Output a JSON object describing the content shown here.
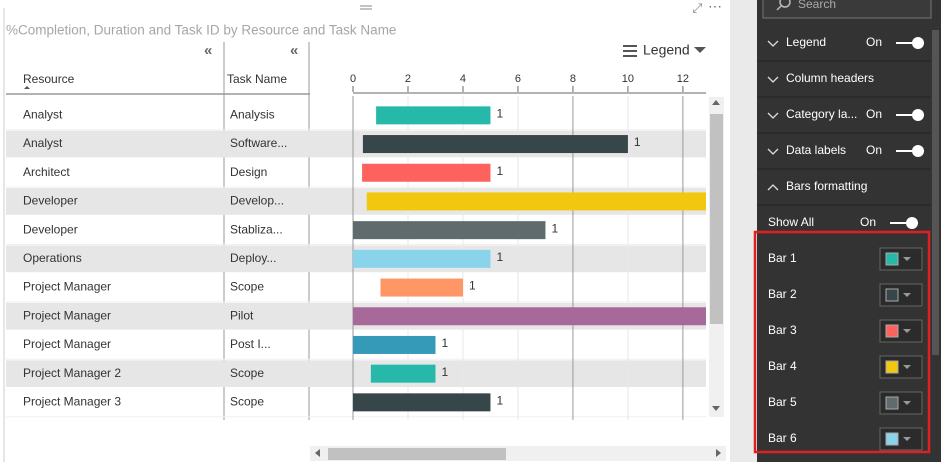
{
  "visual": {
    "title": "%Completion, Duration and Task ID by Resource and Task Name",
    "legend_label": "Legend",
    "columns": [
      "Resource",
      "Task Name"
    ],
    "xlim": [
      0,
      12.84
    ],
    "xticks": [
      0,
      2,
      4,
      6,
      8,
      10,
      12
    ],
    "rows": [
      {
        "resource": "Analyst",
        "task": "Analysis",
        "start": 0.84,
        "end": 5,
        "task_id": 1,
        "color": "#26b9a9"
      },
      {
        "resource": "Analyst",
        "task": "Software...",
        "start": 0.36,
        "end": 10,
        "task_id": 1,
        "color": "#374649"
      },
      {
        "resource": "Architect",
        "task": "Design",
        "start": 0.33,
        "end": 5,
        "task_id": 1,
        "color": "#fd625e"
      },
      {
        "resource": "Developer",
        "task": "Develop...",
        "start": 0.5,
        "end": 13,
        "task_id": null,
        "color": "#f2c80f"
      },
      {
        "resource": "Developer",
        "task": "Stabliza...",
        "start": 0,
        "end": 7,
        "task_id": 1,
        "color": "#5f6b6d"
      },
      {
        "resource": "Operations",
        "task": "Deploy...",
        "start": 0,
        "end": 5,
        "task_id": 1,
        "color": "#8ad4eb"
      },
      {
        "resource": "Project Manager",
        "task": "Scope",
        "start": 1,
        "end": 4,
        "task_id": 1,
        "color": "#fe9666"
      },
      {
        "resource": "Project Manager",
        "task": "Pilot",
        "start": 0,
        "end": 13,
        "task_id": null,
        "color": "#a66999"
      },
      {
        "resource": "Project Manager",
        "task": "Post I...",
        "start": 0,
        "end": 3,
        "task_id": 1,
        "color": "#3599b8"
      },
      {
        "resource": "Project Manager 2",
        "task": "Scope",
        "start": 0.65,
        "end": 3,
        "task_id": 1,
        "color": "#26b9a9"
      },
      {
        "resource": "Project Manager 3",
        "task": "Scope",
        "start": 0,
        "end": 5,
        "task_id": 1,
        "color": "#374649"
      }
    ]
  },
  "panel": {
    "search": "Search",
    "sections": [
      {
        "label": "Legend",
        "state": "On"
      },
      {
        "label": "Column headers",
        "state": null
      },
      {
        "label": "Category la...",
        "state": "On"
      },
      {
        "label": "Data labels",
        "state": "On"
      },
      {
        "label": "Bars formatting",
        "state": null
      }
    ],
    "show_all": {
      "label": "Show All",
      "state": "On"
    },
    "bars": [
      {
        "label": "Bar 1",
        "color": "#26b9a9"
      },
      {
        "label": "Bar 2",
        "color": "#374649"
      },
      {
        "label": "Bar 3",
        "color": "#fd625e"
      },
      {
        "label": "Bar 4",
        "color": "#f2c80f"
      },
      {
        "label": "Bar 5",
        "color": "#5f6b6d"
      },
      {
        "label": "Bar 6",
        "color": "#8ad4eb"
      }
    ]
  }
}
